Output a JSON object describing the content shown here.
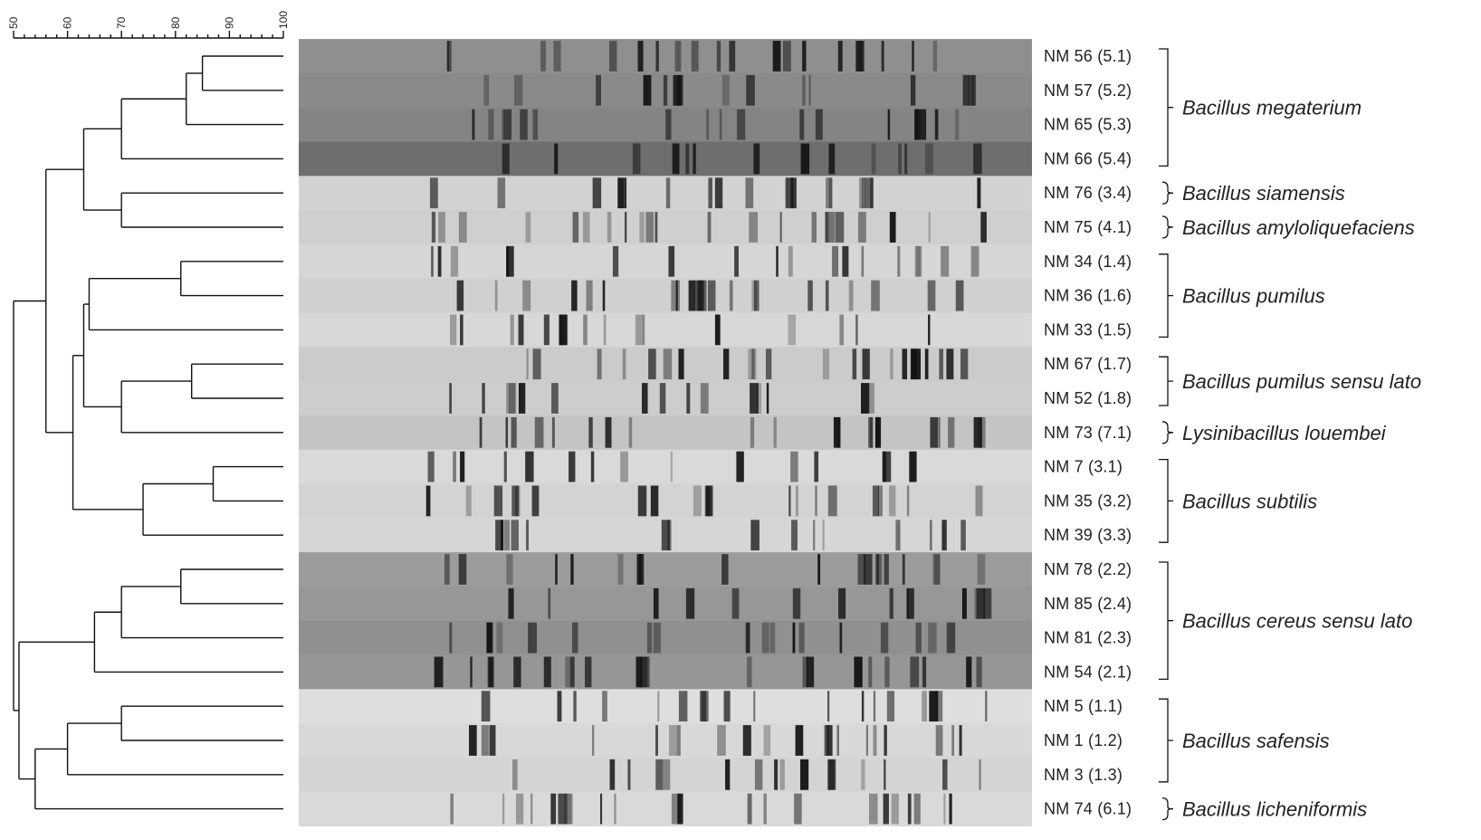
{
  "similarity_scale": {
    "ticks": [
      "50",
      "60",
      "70",
      "80",
      "90",
      "100"
    ]
  },
  "lanes": [
    {
      "label": "NM 56 (5.1)",
      "gel_shade": "#8f8f8f"
    },
    {
      "label": "NM 57 (5.2)",
      "gel_shade": "#8a8a8a"
    },
    {
      "label": "NM 65 (5.3)",
      "gel_shade": "#848484"
    },
    {
      "label": "NM 66 (5.4)",
      "gel_shade": "#6e6e6e"
    },
    {
      "label": "NM 76 (3.4)",
      "gel_shade": "#d2d2d2"
    },
    {
      "label": "NM 75 (4.1)",
      "gel_shade": "#cfcfcf"
    },
    {
      "label": "NM 34 (1.4)",
      "gel_shade": "#d6d6d6"
    },
    {
      "label": "NM 36 (1.6)",
      "gel_shade": "#d0d0d0"
    },
    {
      "label": "NM 33 (1.5)",
      "gel_shade": "#d8d8d8"
    },
    {
      "label": "NM 67 (1.7)",
      "gel_shade": "#cbcbcb"
    },
    {
      "label": "NM 52 (1.8)",
      "gel_shade": "#cdcdcd"
    },
    {
      "label": "NM 73 (7.1)",
      "gel_shade": "#c4c4c4"
    },
    {
      "label": "NM 7 (3.1)",
      "gel_shade": "#d9d9d9"
    },
    {
      "label": "NM 35 (3.2)",
      "gel_shade": "#d3d3d3"
    },
    {
      "label": "NM 39 (3.3)",
      "gel_shade": "#d6d6d6"
    },
    {
      "label": "NM 78 (2.2)",
      "gel_shade": "#9c9c9c"
    },
    {
      "label": "NM 85 (2.4)",
      "gel_shade": "#979797"
    },
    {
      "label": "NM 81 (2.3)",
      "gel_shade": "#909090"
    },
    {
      "label": "NM 54 (2.1)",
      "gel_shade": "#969696"
    },
    {
      "label": "NM 5 (1.1)",
      "gel_shade": "#dedede"
    },
    {
      "label": "NM 1 (1.2)",
      "gel_shade": "#d8d8d8"
    },
    {
      "label": "NM 3 (1.3)",
      "gel_shade": "#d4d4d4"
    },
    {
      "label": "NM 74 (6.1)",
      "gel_shade": "#d9d9d9"
    }
  ],
  "groups": [
    {
      "species": "Bacillus megaterium",
      "lanes": [
        0,
        3
      ]
    },
    {
      "species": "Bacillus siamensis",
      "lanes": [
        4,
        4
      ]
    },
    {
      "species": "Bacillus amyloliquefaciens",
      "lanes": [
        5,
        5
      ]
    },
    {
      "species": "Bacillus pumilus",
      "lanes": [
        6,
        8
      ]
    },
    {
      "species": "Bacillus pumilus  sensu lato",
      "lanes": [
        9,
        10
      ]
    },
    {
      "species": "Lysinibacillus  louembei",
      "lanes": [
        11,
        11
      ]
    },
    {
      "species": "Bacillus subtilis",
      "lanes": [
        12,
        14
      ]
    },
    {
      "species": "Bacillus cereus  sensu lato",
      "lanes": [
        15,
        18
      ]
    },
    {
      "species": "Bacillus safensis",
      "lanes": [
        19,
        21
      ]
    },
    {
      "species": "Bacillus licheniformis",
      "lanes": [
        22,
        22
      ]
    }
  ],
  "dendrogram": {
    "similarity_range": [
      50,
      100
    ],
    "tree": [
      [
        [
          [
            [
              [
                0,
                1,
                85
              ],
              2,
              82
            ],
            3,
            70
          ],
          [
            4,
            5,
            70
          ],
          63
        ],
        [
          [
            [
              [
                6,
                7,
                81
              ],
              8,
              64
            ],
            [
              [
                9,
                10,
                83
              ],
              11,
              70
            ],
            63
          ],
          [
            [
              12,
              13,
              87
            ],
            14,
            74
          ],
          61
        ],
        56
      ],
      [
        [
          [
            [
              15,
              16,
              81
            ],
            17,
            70
          ],
          18,
          65
        ],
        [
          [
            [
              19,
              20,
              70
            ],
            21,
            60
          ],
          22,
          54
        ],
        51
      ],
      50
    ]
  }
}
